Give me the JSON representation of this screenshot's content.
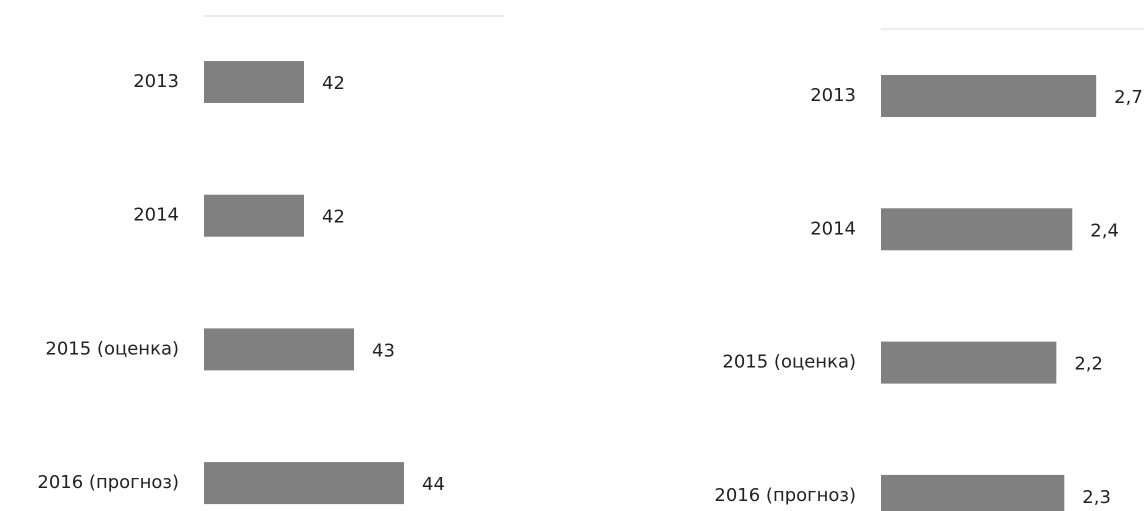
{
  "chart_data": [
    {
      "type": "bar",
      "orientation": "horizontal",
      "categories": [
        "2013",
        "2014",
        "2015 (оценка)",
        "2016 (прогноз)"
      ],
      "values": [
        42,
        42,
        43,
        44
      ],
      "color": "#808080",
      "xlim": [
        40,
        46
      ]
    },
    {
      "type": "bar",
      "orientation": "horizontal",
      "categories": [
        "2013",
        "2014",
        "2015 (оценка)",
        "2016 (прогноз)"
      ],
      "values": [
        2.7,
        2.4,
        2.2,
        2.3
      ],
      "value_labels": [
        "2,7",
        "2,4",
        "2,2",
        "2,3"
      ],
      "color": "#808080",
      "xlim": [
        0,
        3.3
      ]
    }
  ]
}
